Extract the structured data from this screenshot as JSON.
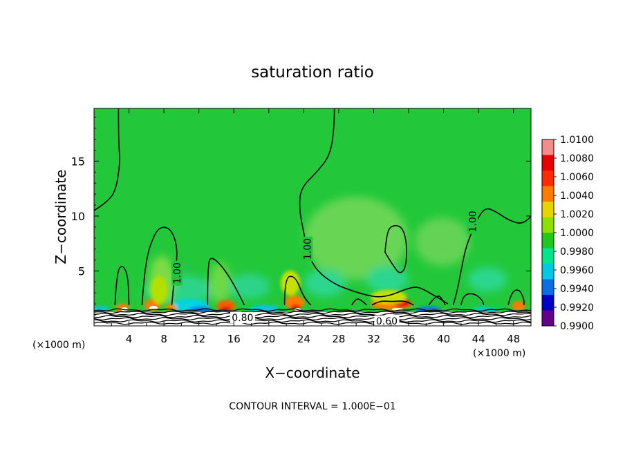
{
  "chart_data": {
    "type": "heatmap",
    "title": "saturation ratio",
    "xlabel": "X−coordinate",
    "ylabel": "Z−coordinate",
    "x_unit_left": "(×1000 m)",
    "x_unit_right": "(×1000 m)",
    "footer": "CONTOUR INTERVAL = 1.000E−01",
    "xlim": [
      0,
      50
    ],
    "ylim": [
      0,
      19.8
    ],
    "xticks": [
      4,
      8,
      12,
      16,
      20,
      24,
      28,
      32,
      36,
      40,
      44,
      48
    ],
    "yticks": [
      5,
      10,
      15
    ],
    "colorbar": {
      "labels": [
        "1.0100",
        "1.0080",
        "1.0060",
        "1.0040",
        "1.0020",
        "1.0000",
        "0.9980",
        "0.9960",
        "0.9940",
        "0.9920",
        "0.9900"
      ],
      "colors": [
        "#f58c8c",
        "#e60000",
        "#ff2a00",
        "#ff7a00",
        "#e8d400",
        "#8fe000",
        "#1ec81e",
        "#00e68c",
        "#00c8e6",
        "#0a6ee6",
        "#0000c8",
        "#64008c"
      ]
    },
    "background_color": "#22c83a",
    "contour_labels": [
      {
        "text": "1.00",
        "x": 9.5,
        "z": 4.8
      },
      {
        "text": "1.00",
        "x": 24.4,
        "z": 7.0
      },
      {
        "text": "1.00",
        "x": 43.3,
        "z": 9.5
      },
      {
        "text": "0.80",
        "x": 17.0,
        "z": 0.75
      },
      {
        "text": "0.60",
        "x": 33.5,
        "z": 0.45
      }
    ],
    "contour_1_00": [
      [
        [
          2.4,
          1.9
        ],
        [
          2.6,
          5.0
        ],
        [
          3.3,
          5.6
        ],
        [
          3.9,
          4.5
        ],
        [
          4.0,
          1.9
        ]
      ],
      [
        [
          5.5,
          1.9
        ],
        [
          5.8,
          5.8
        ],
        [
          7.0,
          8.6
        ],
        [
          8.0,
          9.1
        ],
        [
          9.0,
          8.6
        ],
        [
          9.6,
          6.8
        ],
        [
          9.2,
          4.5
        ],
        [
          8.9,
          1.9
        ]
      ],
      [
        [
          13.0,
          1.9
        ],
        [
          13.0,
          5.8
        ],
        [
          13.5,
          6.3
        ],
        [
          14.7,
          5.4
        ],
        [
          16.0,
          3.8
        ],
        [
          17.2,
          1.9
        ]
      ],
      [
        [
          21.8,
          1.9
        ],
        [
          21.8,
          4.4
        ],
        [
          23.0,
          4.6
        ],
        [
          24.0,
          2.6
        ],
        [
          24.8,
          1.9
        ]
      ],
      [
        [
          29.5,
          1.9
        ],
        [
          30.0,
          2.6
        ],
        [
          30.8,
          2.2
        ],
        [
          31.2,
          1.9
        ]
      ],
      [
        [
          31.8,
          1.9
        ],
        [
          32.7,
          2.3
        ],
        [
          34.0,
          2.2
        ],
        [
          35.5,
          2.3
        ],
        [
          36.6,
          1.9
        ]
      ],
      [
        [
          38.3,
          1.9
        ],
        [
          39.3,
          3.0
        ],
        [
          40.0,
          2.2
        ],
        [
          40.2,
          1.9
        ]
      ],
      [
        [
          42.0,
          1.9
        ],
        [
          42.2,
          2.8
        ],
        [
          43.4,
          3.0
        ],
        [
          44.4,
          2.4
        ],
        [
          44.6,
          1.9
        ]
      ],
      [
        [
          47.4,
          1.9
        ],
        [
          47.7,
          3.0
        ],
        [
          48.6,
          3.4
        ],
        [
          49.2,
          2.5
        ],
        [
          49.2,
          1.9
        ]
      ],
      [
        [
          33.3,
          6.7
        ],
        [
          33.5,
          8.6
        ],
        [
          34.2,
          9.2
        ],
        [
          35.3,
          9.0
        ],
        [
          35.8,
          7.5
        ],
        [
          35.7,
          5.3
        ],
        [
          35.0,
          4.7
        ],
        [
          34.3,
          5.4
        ],
        [
          33.3,
          6.7
        ]
      ],
      [
        [
          2.8,
          19.8
        ],
        [
          2.8,
          16.5
        ],
        [
          3.0,
          15.0
        ],
        [
          2.5,
          12.3
        ],
        [
          1.5,
          11.3
        ],
        [
          0,
          10.5
        ]
      ],
      [
        [
          27.5,
          19.8
        ],
        [
          27.5,
          18.0
        ],
        [
          27.0,
          15.5
        ],
        [
          25.5,
          14.0
        ],
        [
          23.6,
          12.5
        ],
        [
          23.5,
          10.5
        ],
        [
          24.0,
          8.5
        ],
        [
          24.5,
          6.5
        ],
        [
          25.5,
          5.0
        ],
        [
          27.5,
          3.8
        ],
        [
          29.5,
          3.2
        ],
        [
          31.2,
          2.8
        ],
        [
          32.5,
          2.6
        ],
        [
          34.0,
          2.8
        ],
        [
          35.5,
          3.3
        ],
        [
          36.9,
          3.6
        ],
        [
          38.0,
          3.2
        ],
        [
          39.5,
          2.5
        ],
        [
          40.5,
          2.0
        ]
      ],
      [
        [
          50,
          10.0
        ],
        [
          49.2,
          9.2
        ],
        [
          47.5,
          9.6
        ],
        [
          46.0,
          10.4
        ],
        [
          44.8,
          10.8
        ],
        [
          43.9,
          9.8
        ],
        [
          43.2,
          8.5
        ],
        [
          42.5,
          7.0
        ],
        [
          42.0,
          5.0
        ],
        [
          41.5,
          3.0
        ],
        [
          41.1,
          1.9
        ]
      ]
    ]
  }
}
